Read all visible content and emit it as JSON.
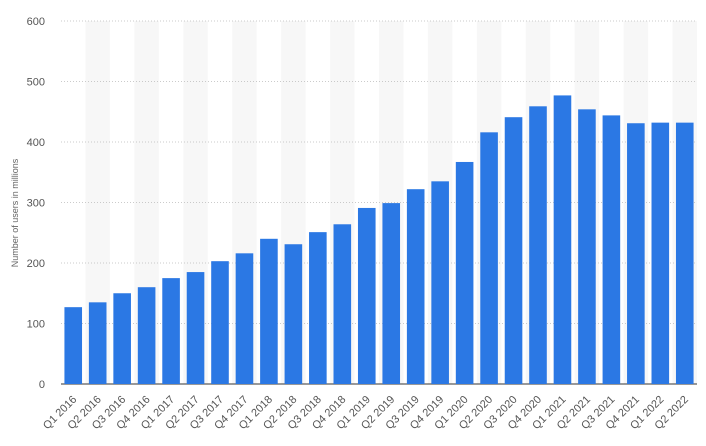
{
  "chart_data": {
    "type": "bar",
    "title": "",
    "xlabel": "",
    "ylabel": "Number of users in millions",
    "ylim": [
      0,
      600
    ],
    "yticks": [
      0,
      100,
      200,
      300,
      400,
      500,
      600
    ],
    "grid": true,
    "legend": "none",
    "bar_color": "#2b78e4",
    "band_color": "#f7f7f7",
    "categories": [
      "Q1 2016",
      "Q2 2016",
      "Q3 2016",
      "Q4 2016",
      "Q1 2017",
      "Q2 2017",
      "Q3 2017",
      "Q4 2017",
      "Q1 2018",
      "Q2 2018",
      "Q3 2018",
      "Q4 2018",
      "Q1 2019",
      "Q2 2019",
      "Q3 2019",
      "Q4 2019",
      "Q1 2020",
      "Q2 2020",
      "Q3 2020",
      "Q4 2020",
      "Q1 2021",
      "Q2 2021",
      "Q3 2021",
      "Q4 2021",
      "Q1 2022",
      "Q2 2022"
    ],
    "values": [
      127,
      135,
      150,
      160,
      175,
      185,
      203,
      216,
      240,
      231,
      251,
      264,
      291,
      299,
      322,
      335,
      367,
      416,
      441,
      459,
      477,
      454,
      444,
      431,
      432,
      432
    ]
  }
}
